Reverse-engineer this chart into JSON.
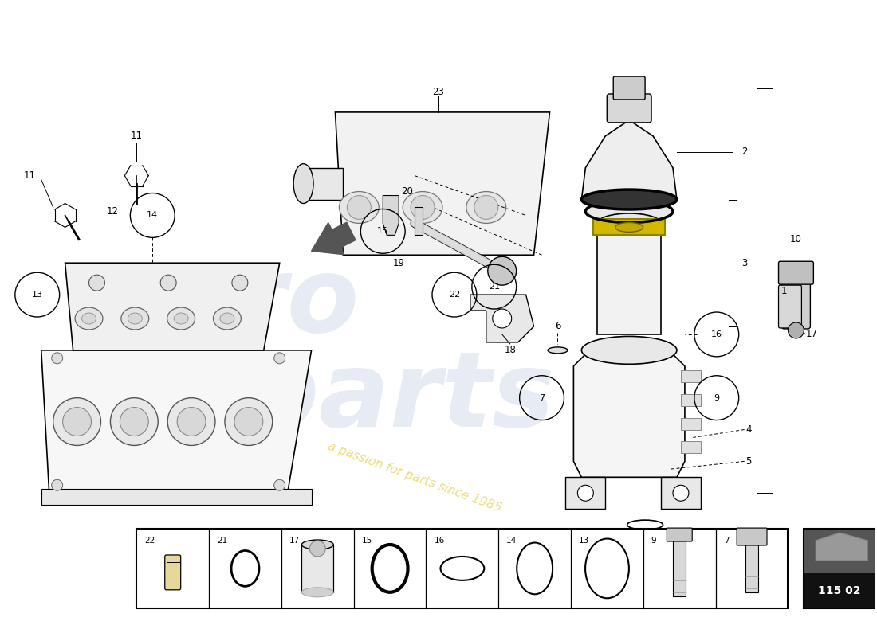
{
  "bg_color": "#ffffff",
  "page_code": "115 02",
  "watermark_color": "#c8d4e8",
  "watermark_alpha": 0.45,
  "tagline_color": "#e8d870",
  "tagline_text": "a passion for parts since 1985",
  "bottom_items": [
    22,
    21,
    17,
    15,
    16,
    14,
    13,
    9,
    7
  ],
  "label_color": "#222222"
}
